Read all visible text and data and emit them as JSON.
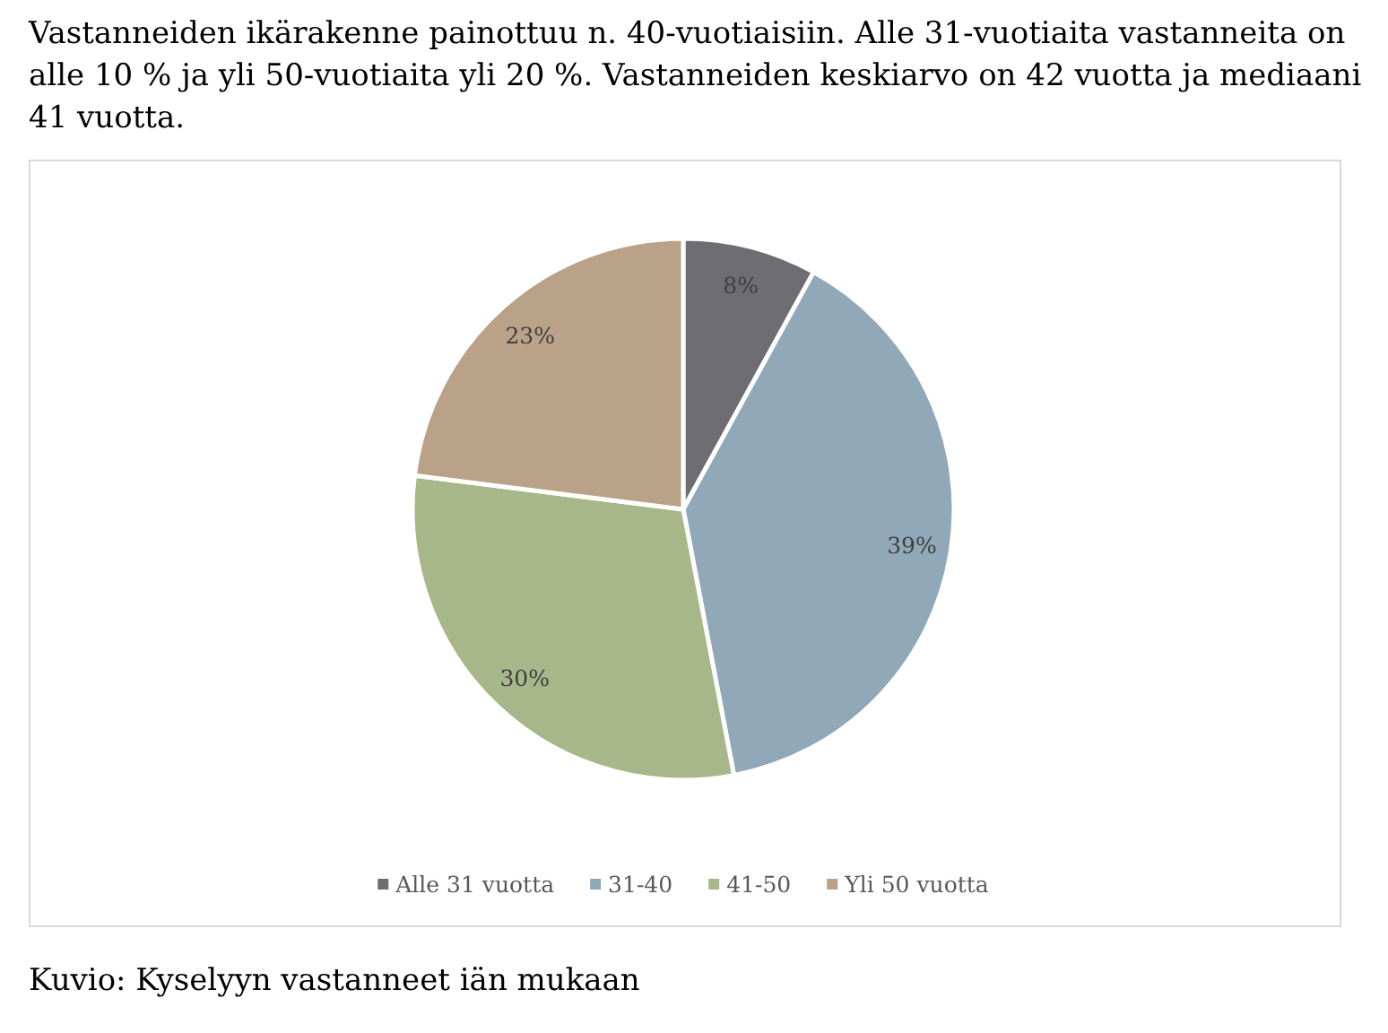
{
  "chart_data": {
    "type": "pie",
    "title": "Vastanneiden ikärakenne painottuu n. 40-vuotiaisiin. Alle 31-vuotiaita vastanneita on alle 10 % ja yli 50-vuotiaita yli 20 %. Vastanneiden keskiarvo on 42 vuotta ja mediaani 41 vuotta.",
    "categories": [
      "Alle 31 vuotta",
      "31-40",
      "41-50",
      "Yli 50 vuotta"
    ],
    "values": [
      8,
      39,
      30,
      23
    ],
    "colors": [
      "#6e6d72",
      "#91a8b8",
      "#a8b78a",
      "#b9a287"
    ],
    "value_labels": [
      "8%",
      "39%",
      "30%",
      "23%"
    ],
    "legend": "bottom",
    "annotations": [
      "Kuvio: Kyselyyn vastanneet iän mukaan"
    ]
  }
}
